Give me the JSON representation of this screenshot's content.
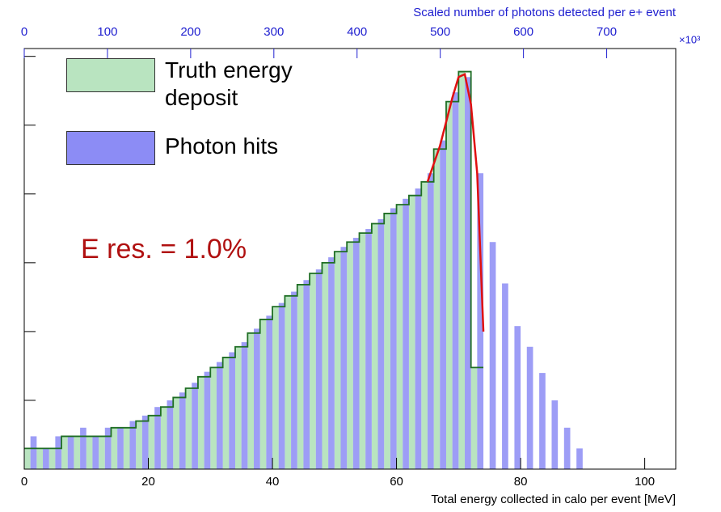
{
  "chart_data": {
    "type": "histogram",
    "xlabel": "Total energy collected in calo per event [MeV]",
    "x2label": "Scaled number of photons detected per e+ event",
    "x2unit": "×10³",
    "annotation": "E res. = 1.0%",
    "xlim": [
      0,
      105
    ],
    "xticks": [
      0,
      20,
      40,
      60,
      80,
      100
    ],
    "x2lim": [
      0,
      783
    ],
    "x2ticks": [
      0,
      100,
      200,
      300,
      400,
      500,
      600,
      700
    ],
    "ylim": [
      1,
      1300000
    ],
    "yticks": [
      1,
      10,
      100,
      1000,
      10000,
      100000,
      1000000
    ],
    "log_y": true,
    "legend": "upper left",
    "bins": [
      0,
      2,
      4,
      6,
      8,
      10,
      12,
      14,
      16,
      18,
      20,
      22,
      24,
      26,
      28,
      30,
      32,
      34,
      36,
      38,
      40,
      42,
      44,
      46,
      48,
      50,
      52,
      54,
      56,
      58,
      60,
      62,
      64,
      66,
      68,
      70,
      72,
      74,
      76,
      78,
      80,
      82,
      84,
      86,
      88,
      90,
      92,
      94,
      96,
      98,
      100
    ],
    "series": [
      {
        "name": "Truth energy deposit",
        "color": "#b9e4c0",
        "edge": "#1f6e24",
        "values": [
          2,
          2,
          2,
          3,
          3,
          3,
          3,
          4,
          4,
          5,
          6,
          8,
          11,
          15,
          22,
          30,
          42,
          60,
          95,
          150,
          230,
          330,
          480,
          700,
          1000,
          1450,
          2000,
          2700,
          3700,
          5200,
          7000,
          9500,
          15000,
          45000,
          220000,
          600000,
          30,
          0,
          0,
          0,
          0,
          0,
          0,
          0,
          0,
          0,
          0,
          0,
          0,
          0
        ]
      },
      {
        "name": "Photon hits",
        "color": "#8c8cf5",
        "values": [
          3,
          2,
          3,
          3,
          4,
          3,
          4,
          4,
          5,
          6,
          8,
          10,
          13,
          18,
          26,
          36,
          50,
          70,
          110,
          170,
          260,
          380,
          560,
          800,
          1200,
          1700,
          2300,
          3100,
          4300,
          6200,
          8500,
          12000,
          20000,
          60000,
          300000,
          500000,
          20000,
          2000,
          500,
          120,
          60,
          25,
          10,
          4,
          2,
          0,
          1,
          0,
          1,
          0
        ]
      }
    ],
    "fit": {
      "color": "#e01010",
      "x": [
        65,
        67,
        69,
        70,
        71,
        72,
        73,
        74
      ],
      "values": [
        15000,
        50000,
        250000,
        500000,
        550000,
        200000,
        20000,
        100
      ]
    }
  }
}
